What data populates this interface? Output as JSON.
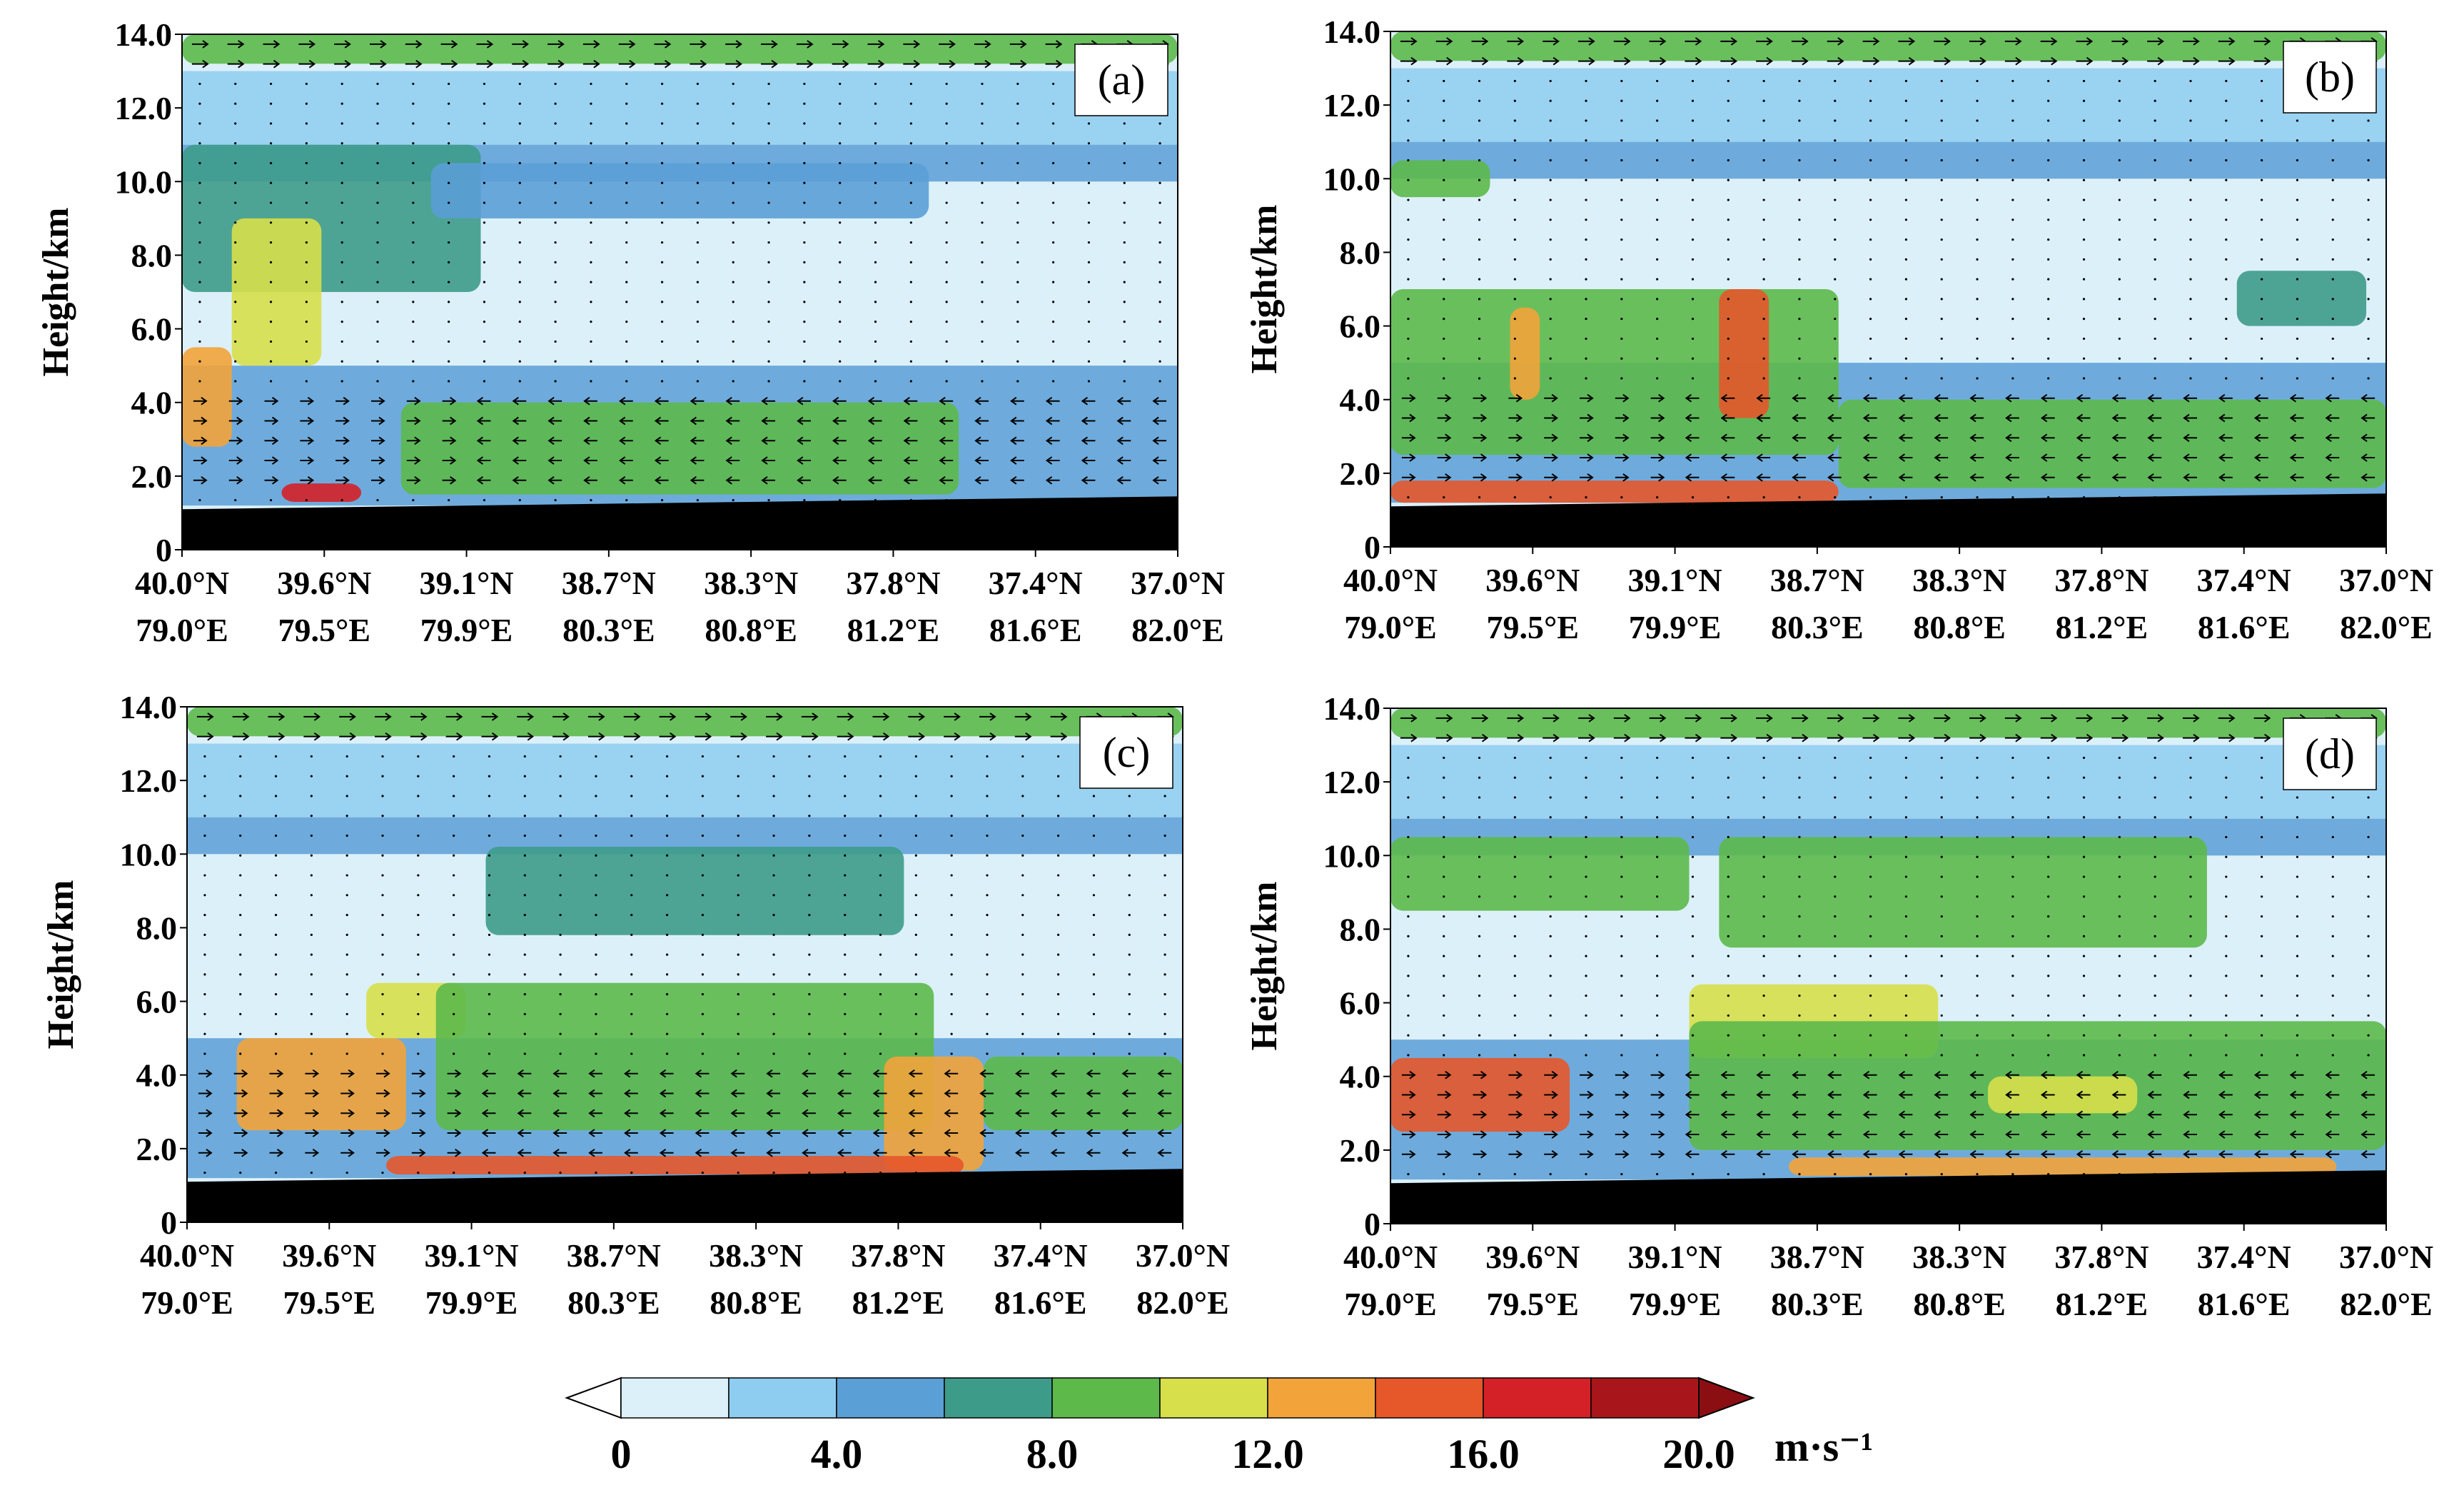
{
  "chart_data": [
    {
      "panel": "(a)",
      "type": "heatmap",
      "ylabel": "Height/km",
      "y_ticks": [
        "0",
        "2.0",
        "4.0",
        "6.0",
        "8.0",
        "10.0",
        "12.0",
        "14.0"
      ],
      "ylim": [
        0,
        14
      ],
      "x_ticks": [
        {
          "lat": "40.0°N",
          "lon": "79.0°E"
        },
        {
          "lat": "39.6°N",
          "lon": "79.5°E"
        },
        {
          "lat": "39.1°N",
          "lon": "79.9°E"
        },
        {
          "lat": "38.7°N",
          "lon": "80.3°E"
        },
        {
          "lat": "38.3°N",
          "lon": "80.8°E"
        },
        {
          "lat": "37.8°N",
          "lon": "81.2°E"
        },
        {
          "lat": "37.4°N",
          "lon": "81.6°E"
        },
        {
          "lat": "37.0°N",
          "lon": "82.0°E"
        }
      ],
      "terrain_km": [
        1.1,
        1.15,
        1.2,
        1.25,
        1.3,
        1.35,
        1.4,
        1.45
      ],
      "features": [
        {
          "x_range": [
            0.0,
            1.0
          ],
          "y_range": [
            13.2,
            14.0
          ],
          "speed": 9
        },
        {
          "x_range": [
            0.0,
            0.3
          ],
          "y_range": [
            7.0,
            11.0
          ],
          "speed": 6
        },
        {
          "x_range": [
            0.0,
            0.05
          ],
          "y_range": [
            2.8,
            5.5
          ],
          "speed": 12
        },
        {
          "x_range": [
            0.05,
            0.14
          ],
          "y_range": [
            5.0,
            9.0
          ],
          "speed": 11
        },
        {
          "x_range": [
            0.1,
            0.18
          ],
          "y_range": [
            1.3,
            1.8
          ],
          "speed": 16
        },
        {
          "x_range": [
            0.25,
            0.75
          ],
          "y_range": [
            9.0,
            10.5
          ],
          "speed": 5
        },
        {
          "x_range": [
            0.22,
            0.78
          ],
          "y_range": [
            1.5,
            4.0
          ],
          "speed": 9
        }
      ]
    },
    {
      "panel": "(b)",
      "type": "heatmap",
      "ylabel": "Height/km",
      "y_ticks": [
        "0",
        "2.0",
        "4.0",
        "6.0",
        "8.0",
        "10.0",
        "12.0",
        "14.0"
      ],
      "ylim": [
        0,
        14
      ],
      "x_ticks": [
        {
          "lat": "40.0°N",
          "lon": "79.0°E"
        },
        {
          "lat": "39.6°N",
          "lon": "79.5°E"
        },
        {
          "lat": "39.1°N",
          "lon": "79.9°E"
        },
        {
          "lat": "38.7°N",
          "lon": "80.3°E"
        },
        {
          "lat": "38.3°N",
          "lon": "80.8°E"
        },
        {
          "lat": "37.8°N",
          "lon": "81.2°E"
        },
        {
          "lat": "37.4°N",
          "lon": "81.6°E"
        },
        {
          "lat": "37.0°N",
          "lon": "82.0°E"
        }
      ],
      "terrain_km": [
        1.1,
        1.15,
        1.2,
        1.25,
        1.3,
        1.35,
        1.4,
        1.45
      ],
      "features": [
        {
          "x_range": [
            0.0,
            1.0
          ],
          "y_range": [
            13.2,
            14.0
          ],
          "speed": 9
        },
        {
          "x_range": [
            0.0,
            0.1
          ],
          "y_range": [
            9.5,
            10.5
          ],
          "speed": 8
        },
        {
          "x_range": [
            0.0,
            0.45
          ],
          "y_range": [
            2.5,
            7.0
          ],
          "speed": 9
        },
        {
          "x_range": [
            0.12,
            0.15
          ],
          "y_range": [
            4.0,
            6.5
          ],
          "speed": 13
        },
        {
          "x_range": [
            0.33,
            0.38
          ],
          "y_range": [
            3.5,
            7.0
          ],
          "speed": 14
        },
        {
          "x_range": [
            0.0,
            0.45
          ],
          "y_range": [
            1.2,
            1.8
          ],
          "speed": 14
        },
        {
          "x_range": [
            0.45,
            1.0
          ],
          "y_range": [
            1.6,
            4.0
          ],
          "speed": 8
        },
        {
          "x_range": [
            0.85,
            0.98
          ],
          "y_range": [
            6.0,
            7.5
          ],
          "speed": 7
        }
      ]
    },
    {
      "panel": "(c)",
      "type": "heatmap",
      "ylabel": "Height/km",
      "y_ticks": [
        "0",
        "2.0",
        "4.0",
        "6.0",
        "8.0",
        "10.0",
        "12.0",
        "14.0"
      ],
      "ylim": [
        0,
        14
      ],
      "x_ticks": [
        {
          "lat": "40.0°N",
          "lon": "79.0°E"
        },
        {
          "lat": "39.6°N",
          "lon": "79.5°E"
        },
        {
          "lat": "39.1°N",
          "lon": "79.9°E"
        },
        {
          "lat": "38.7°N",
          "lon": "80.3°E"
        },
        {
          "lat": "38.3°N",
          "lon": "80.8°E"
        },
        {
          "lat": "37.8°N",
          "lon": "81.2°E"
        },
        {
          "lat": "37.4°N",
          "lon": "81.6°E"
        },
        {
          "lat": "37.0°N",
          "lon": "82.0°E"
        }
      ],
      "terrain_km": [
        1.1,
        1.15,
        1.2,
        1.25,
        1.3,
        1.35,
        1.4,
        1.45
      ],
      "features": [
        {
          "x_range": [
            0.0,
            1.0
          ],
          "y_range": [
            13.2,
            14.0
          ],
          "speed": 9
        },
        {
          "x_range": [
            0.3,
            0.72
          ],
          "y_range": [
            7.8,
            10.2
          ],
          "speed": 7
        },
        {
          "x_range": [
            0.05,
            0.22
          ],
          "y_range": [
            2.5,
            5.0
          ],
          "speed": 12
        },
        {
          "x_range": [
            0.18,
            0.28
          ],
          "y_range": [
            5.0,
            6.5
          ],
          "speed": 11
        },
        {
          "x_range": [
            0.25,
            0.75
          ],
          "y_range": [
            2.5,
            6.5
          ],
          "speed": 9
        },
        {
          "x_range": [
            0.7,
            0.8
          ],
          "y_range": [
            1.4,
            4.5
          ],
          "speed": 12
        },
        {
          "x_range": [
            0.2,
            0.78
          ],
          "y_range": [
            1.3,
            1.8
          ],
          "speed": 15
        },
        {
          "x_range": [
            0.8,
            1.0
          ],
          "y_range": [
            2.5,
            4.5
          ],
          "speed": 8
        }
      ]
    },
    {
      "panel": "(d)",
      "type": "heatmap",
      "ylabel": "Height/km",
      "y_ticks": [
        "0",
        "2.0",
        "4.0",
        "6.0",
        "8.0",
        "10.0",
        "12.0",
        "14.0"
      ],
      "ylim": [
        0,
        14
      ],
      "x_ticks": [
        {
          "lat": "40.0°N",
          "lon": "79.0°E"
        },
        {
          "lat": "39.6°N",
          "lon": "79.5°E"
        },
        {
          "lat": "39.1°N",
          "lon": "79.9°E"
        },
        {
          "lat": "38.7°N",
          "lon": "80.3°E"
        },
        {
          "lat": "38.3°N",
          "lon": "80.8°E"
        },
        {
          "lat": "37.8°N",
          "lon": "81.2°E"
        },
        {
          "lat": "37.4°N",
          "lon": "81.6°E"
        },
        {
          "lat": "37.0°N",
          "lon": "82.0°E"
        }
      ],
      "terrain_km": [
        1.1,
        1.15,
        1.2,
        1.25,
        1.3,
        1.35,
        1.4,
        1.45
      ],
      "features": [
        {
          "x_range": [
            0.0,
            1.0
          ],
          "y_range": [
            13.2,
            14.0
          ],
          "speed": 9
        },
        {
          "x_range": [
            0.0,
            0.3
          ],
          "y_range": [
            8.5,
            10.5
          ],
          "speed": 8
        },
        {
          "x_range": [
            0.33,
            0.82
          ],
          "y_range": [
            7.5,
            10.5
          ],
          "speed": 8
        },
        {
          "x_range": [
            0.0,
            0.18
          ],
          "y_range": [
            2.5,
            4.5
          ],
          "speed": 14
        },
        {
          "x_range": [
            0.3,
            0.55
          ],
          "y_range": [
            4.5,
            6.5
          ],
          "speed": 11
        },
        {
          "x_range": [
            0.3,
            1.0
          ],
          "y_range": [
            2.0,
            5.5
          ],
          "speed": 9
        },
        {
          "x_range": [
            0.6,
            0.75
          ],
          "y_range": [
            3.0,
            4.0
          ],
          "speed": 11
        },
        {
          "x_range": [
            0.4,
            0.95
          ],
          "y_range": [
            1.3,
            1.8
          ],
          "speed": 12
        }
      ]
    }
  ],
  "colorbar": {
    "levels": [
      0,
      2,
      4,
      6,
      8,
      10,
      12,
      14,
      16,
      18,
      20
    ],
    "colors": [
      "#ffffff",
      "#dcf0fa",
      "#8ecdf0",
      "#5a9fd6",
      "#3d9b8a",
      "#5cb94a",
      "#d7df4a",
      "#f2a33a",
      "#e6572a",
      "#d42127",
      "#a8161b",
      "#8b0e12"
    ],
    "tick_labels": [
      "0",
      "4.0",
      "8.0",
      "12.0",
      "16.0",
      "20.0"
    ],
    "unit": "m·s⁻¹"
  },
  "style": {
    "terrain_color": "#000000",
    "background_speed_color": "#dcf0fa"
  }
}
